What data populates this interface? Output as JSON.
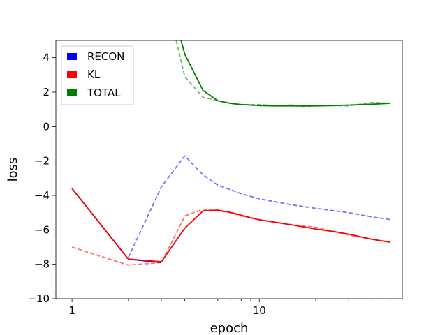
{
  "chart_data": {
    "type": "line",
    "xlabel": "epoch",
    "ylabel": "loss",
    "xscale": "log",
    "xlim": [
      0.82,
      58
    ],
    "ylim": [
      -10,
      5
    ],
    "x_ticks": [
      1,
      10
    ],
    "y_ticks": [
      -10,
      -8,
      -6,
      -4,
      -2,
      0,
      2,
      4
    ],
    "x_tick_labels": [
      "1",
      "10"
    ],
    "y_tick_labels": [
      "−10",
      "−8",
      "−6",
      "−4",
      "−2",
      "0",
      "2",
      "4"
    ],
    "legend": {
      "placement": "top-left",
      "items": [
        {
          "label": "RECON",
          "color": "#0000ff"
        },
        {
          "label": "KL",
          "color": "#ff0000"
        },
        {
          "label": "TOTAL",
          "color": "#008000"
        }
      ]
    },
    "series": [
      {
        "name": "RECON",
        "color": "#0000ff",
        "style": "solid",
        "x": [
          1,
          2,
          3
        ],
        "y": [
          -3.6,
          -7.7,
          -7.9
        ]
      },
      {
        "name": "KL",
        "color": "#ff0000",
        "style": "solid",
        "x": [
          1,
          2,
          3,
          4,
          5,
          6,
          7,
          8,
          9,
          10,
          12,
          15,
          20,
          25,
          30,
          40,
          50
        ],
        "y": [
          -3.6,
          -7.7,
          -7.85,
          -5.9,
          -4.9,
          -4.85,
          -4.98,
          -5.15,
          -5.3,
          -5.42,
          -5.55,
          -5.72,
          -5.95,
          -6.1,
          -6.25,
          -6.55,
          -6.72
        ]
      },
      {
        "name": "TOTAL",
        "color": "#008000",
        "style": "solid",
        "x": [
          3.8,
          4,
          5,
          6,
          7,
          8,
          10,
          12,
          15,
          20,
          25,
          30,
          40,
          50
        ],
        "y": [
          5.1,
          4.2,
          2.1,
          1.5,
          1.35,
          1.28,
          1.22,
          1.2,
          1.2,
          1.2,
          1.22,
          1.25,
          1.3,
          1.35
        ]
      },
      {
        "name": "",
        "color": "#0000ff",
        "style": "dashed",
        "x": [
          2,
          3,
          4,
          5,
          6,
          8,
          10,
          15,
          20,
          30,
          40,
          50
        ],
        "y": [
          -7.6,
          -3.5,
          -1.7,
          -2.8,
          -3.4,
          -3.9,
          -4.2,
          -4.55,
          -4.75,
          -5.0,
          -5.25,
          -5.4
        ]
      },
      {
        "name": "",
        "color": "#ff0000",
        "style": "dashed",
        "x": [
          1,
          2,
          3,
          4,
          5,
          6,
          7,
          8,
          9,
          10,
          12,
          15,
          20,
          25,
          30,
          40,
          50
        ],
        "y": [
          -7.0,
          -8.05,
          -7.9,
          -5.2,
          -4.8,
          -4.9,
          -5.0,
          -5.2,
          -5.28,
          -5.4,
          -5.55,
          -5.7,
          -5.85,
          -6.1,
          -6.3,
          -6.55,
          -6.7
        ]
      },
      {
        "name": "",
        "color": "#008000",
        "style": "dashed",
        "x": [
          3.6,
          4,
          5,
          6,
          7,
          8,
          10,
          12,
          15,
          17,
          20,
          25,
          30,
          40,
          50
        ],
        "y": [
          5.0,
          2.9,
          1.7,
          1.5,
          1.35,
          1.27,
          1.28,
          1.22,
          1.25,
          1.13,
          1.22,
          1.22,
          1.2,
          1.4,
          1.35
        ]
      }
    ]
  }
}
